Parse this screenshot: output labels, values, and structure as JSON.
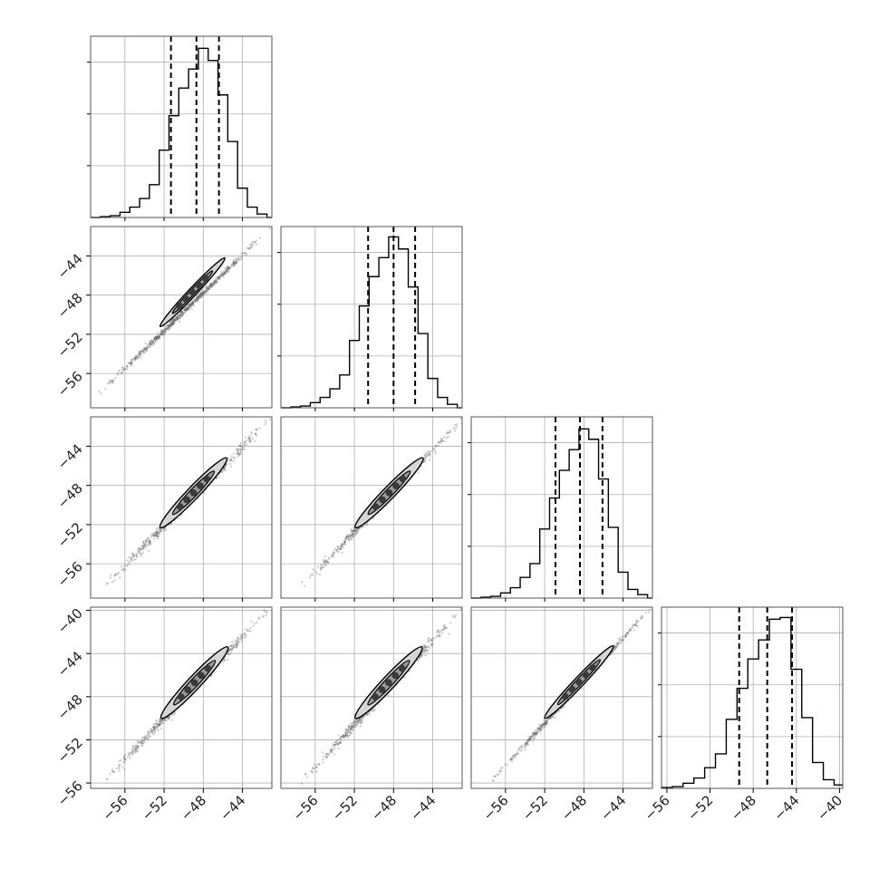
{
  "chart_data": {
    "type": "corner",
    "n_params": 4,
    "colors": {
      "line": "#000000",
      "grid": "#b0b0b0",
      "sample_point": "#6a6a6a",
      "contour_fill_outer": "#d6d6d6",
      "contour_fill_mid": "#9a9a9a",
      "contour_fill_inner": "#3a3a3a"
    },
    "axis_ticks": [
      {
        "range": [
          -59.5,
          -41.0
        ],
        "ticks": [
          -56,
          -52,
          -48,
          -44
        ],
        "labels": [
          "−56",
          "−52",
          "−48",
          "−44"
        ]
      },
      {
        "range": [
          -59.5,
          -41.0
        ],
        "ticks": [
          -56,
          -52,
          -48,
          -44
        ],
        "labels": [
          "−56",
          "−52",
          "−48",
          "−44"
        ]
      },
      {
        "range": [
          -59.5,
          -41.0
        ],
        "ticks": [
          -56,
          -52,
          -48,
          -44
        ],
        "labels": [
          "−56",
          "−52",
          "−48",
          "−44"
        ]
      },
      {
        "range": [
          -56.5,
          -39.7
        ],
        "ticks": [
          -56,
          -52,
          -48,
          -44,
          -40
        ],
        "labels": [
          "−56",
          "−52",
          "−48",
          "−44",
          "−40"
        ]
      }
    ],
    "diagonal_histograms": [
      {
        "bin_edges": [
          -59.5,
          -58.5,
          -57.5,
          -56.5,
          -55.5,
          -54.5,
          -53.5,
          -52.5,
          -51.5,
          -50.5,
          -49.5,
          -48.5,
          -47.5,
          -46.5,
          -45.5,
          -44.5,
          -43.5,
          -42.5,
          -41.5,
          -41.0
        ],
        "counts": [
          0.0,
          0.005,
          0.01,
          0.03,
          0.06,
          0.11,
          0.19,
          0.39,
          0.59,
          0.75,
          0.86,
          0.98,
          0.91,
          0.71,
          0.44,
          0.17,
          0.06,
          0.02,
          0.0
        ],
        "quantile_lines": [
          -51.3,
          -48.7,
          -46.4
        ],
        "ylim": [
          0,
          1.05
        ]
      },
      {
        "bin_edges": [
          -59.5,
          -58.5,
          -57.5,
          -56.5,
          -55.5,
          -54.5,
          -53.5,
          -52.5,
          -51.5,
          -50.5,
          -49.5,
          -48.5,
          -47.5,
          -46.5,
          -45.5,
          -44.5,
          -43.5,
          -42.5,
          -41.5,
          -41.0
        ],
        "counts": [
          0.0,
          0.005,
          0.01,
          0.03,
          0.06,
          0.11,
          0.19,
          0.39,
          0.59,
          0.76,
          0.87,
          0.99,
          0.92,
          0.7,
          0.43,
          0.17,
          0.06,
          0.02,
          0.0
        ],
        "quantile_lines": [
          -50.6,
          -48.0,
          -45.8
        ],
        "ylim": [
          0,
          1.05
        ]
      },
      {
        "bin_edges": [
          -59.5,
          -58.5,
          -57.5,
          -56.5,
          -55.5,
          -54.5,
          -53.5,
          -52.5,
          -51.5,
          -50.5,
          -49.5,
          -48.5,
          -47.5,
          -46.5,
          -45.5,
          -44.5,
          -43.5,
          -42.5,
          -41.5,
          -41.0
        ],
        "counts": [
          0.0,
          0.005,
          0.01,
          0.03,
          0.06,
          0.12,
          0.2,
          0.4,
          0.58,
          0.74,
          0.86,
          0.98,
          0.92,
          0.69,
          0.41,
          0.15,
          0.05,
          0.02,
          0.0
        ],
        "quantile_lines": [
          -50.9,
          -48.4,
          -46.1
        ],
        "ylim": [
          0,
          1.05
        ]
      },
      {
        "bin_edges": [
          -56.5,
          -55.5,
          -54.5,
          -53.5,
          -52.5,
          -51.5,
          -50.5,
          -49.5,
          -48.5,
          -47.5,
          -46.5,
          -45.5,
          -44.5,
          -43.5,
          -42.5,
          -41.5,
          -40.5,
          -39.7
        ],
        "counts": [
          0.005,
          0.01,
          0.03,
          0.06,
          0.12,
          0.2,
          0.4,
          0.58,
          0.75,
          0.86,
          0.98,
          0.99,
          0.69,
          0.41,
          0.15,
          0.05,
          0.02
        ],
        "quantile_lines": [
          -49.3,
          -46.7,
          -44.4
        ],
        "ylim": [
          0,
          1.05
        ]
      }
    ],
    "scatter_panels": [
      {
        "row": 1,
        "col": 0,
        "center": [
          -48.5,
          -48.0
        ],
        "end_low": [
          -58.8,
          -58.2
        ],
        "end_high": [
          -41.2,
          -41.2
        ],
        "width": 0.55,
        "outer_contour": [
          [
            -52.4,
            -51.2
          ],
          [
            -45.8,
            -44.2
          ]
        ],
        "outer_width": 1.0
      },
      {
        "row": 2,
        "col": 0,
        "center": [
          -48.5,
          -48.8
        ],
        "end_low": [
          -58.2,
          -58.5
        ],
        "end_high": [
          -41.2,
          -41.2
        ],
        "width": 0.9,
        "outer_contour": [
          [
            -52.4,
            -52.3
          ],
          [
            -45.6,
            -45.2
          ]
        ],
        "outer_width": 1.5
      },
      {
        "row": 2,
        "col": 1,
        "center": [
          -48.0,
          -48.8
        ],
        "end_low": [
          -57.5,
          -58.5
        ],
        "end_high": [
          -41.0,
          -41.2
        ],
        "width": 0.9,
        "outer_contour": [
          [
            -51.9,
            -52.3
          ],
          [
            -45.0,
            -45.2
          ]
        ],
        "outer_width": 1.5
      },
      {
        "row": 3,
        "col": 0,
        "center": [
          -48.5,
          -46.6
        ],
        "end_low": [
          -58.3,
          -56.0
        ],
        "end_high": [
          -41.2,
          -39.8
        ],
        "width": 0.9,
        "outer_contour": [
          [
            -52.3,
            -50.0
          ],
          [
            -45.5,
            -43.4
          ]
        ],
        "outer_width": 1.6
      },
      {
        "row": 3,
        "col": 1,
        "center": [
          -48.0,
          -46.6
        ],
        "end_low": [
          -57.5,
          -56.0
        ],
        "end_high": [
          -41.0,
          -39.8
        ],
        "width": 0.9,
        "outer_contour": [
          [
            -51.9,
            -50.0
          ],
          [
            -45.1,
            -43.4
          ]
        ],
        "outer_width": 1.6
      },
      {
        "row": 3,
        "col": 2,
        "center": [
          -48.4,
          -46.6
        ],
        "end_low": [
          -57.6,
          -56.0
        ],
        "end_high": [
          -41.2,
          -39.8
        ],
        "width": 0.6,
        "outer_contour": [
          [
            -52.0,
            -50.0
          ],
          [
            -45.0,
            -43.3
          ]
        ],
        "outer_width": 1.2
      }
    ]
  }
}
